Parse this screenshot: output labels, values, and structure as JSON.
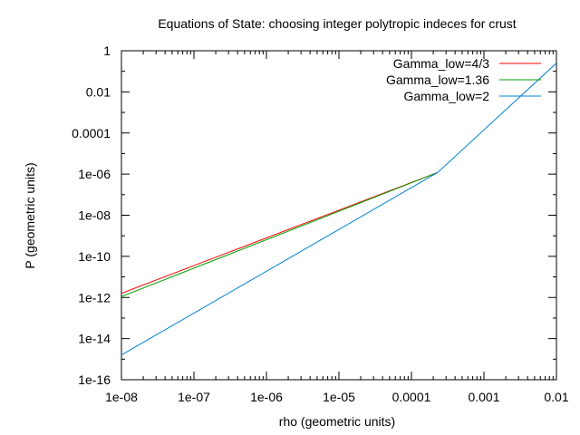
{
  "chart_data": {
    "type": "line",
    "title": "Equations of State: choosing integer polytropic indeces for crust",
    "xlabel": "rho (geometric units)",
    "ylabel": "P (geometric units)",
    "xscale": "log",
    "yscale": "log",
    "xlim": [
      1e-08,
      0.01
    ],
    "ylim": [
      1e-16,
      1
    ],
    "x_ticks": [
      {
        "value": 1e-08,
        "label": "1e-08"
      },
      {
        "value": 1e-07,
        "label": "1e-07"
      },
      {
        "value": 1e-06,
        "label": "1e-06"
      },
      {
        "value": 1e-05,
        "label": "1e-05"
      },
      {
        "value": 0.0001,
        "label": "0.0001"
      },
      {
        "value": 0.001,
        "label": "0.001"
      },
      {
        "value": 0.01,
        "label": "0.01"
      }
    ],
    "y_ticks": [
      {
        "value": 1e-16,
        "label": "1e-16"
      },
      {
        "value": 1e-14,
        "label": "1e-14"
      },
      {
        "value": 1e-12,
        "label": "1e-12"
      },
      {
        "value": 1e-10,
        "label": "1e-10"
      },
      {
        "value": 1e-08,
        "label": "1e-08"
      },
      {
        "value": 1e-06,
        "label": "1e-06"
      },
      {
        "value": 0.0001,
        "label": "0.0001"
      },
      {
        "value": 0.01,
        "label": "0.01"
      },
      {
        "value": 1,
        "label": "1"
      }
    ],
    "grid": false,
    "legend": "top-right",
    "series": [
      {
        "name": "Gamma_low=4/3",
        "color": "#ff0000",
        "x": [
          1e-08,
          0.00023
        ],
        "y": [
          1.6e-12,
          1.2e-06
        ]
      },
      {
        "name": "Gamma_low=1.36",
        "color": "#00a000",
        "x": [
          1e-08,
          0.00023
        ],
        "y": [
          1.1e-12,
          1.2e-06
        ]
      },
      {
        "name": "Gamma_low=2",
        "color": "#0080d0",
        "x": [
          1e-08,
          0.00023,
          0.01
        ],
        "y": [
          1.6e-15,
          1.2e-06,
          0.25
        ]
      }
    ]
  }
}
